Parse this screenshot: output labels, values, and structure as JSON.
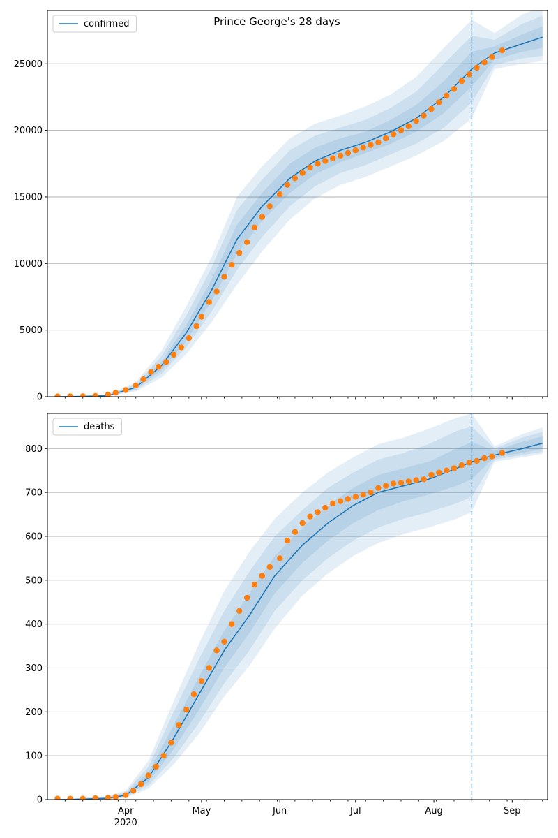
{
  "chart_data": [
    {
      "type": "line",
      "title": "Prince George's 28 days",
      "legend": {
        "label": "confirmed",
        "placement": "top-left"
      },
      "ylim": [
        0,
        29000
      ],
      "yticks": [
        0,
        5000,
        10000,
        15000,
        20000,
        25000
      ],
      "ytick_labels": [
        "0",
        "5000",
        "10000",
        "15000",
        "20000",
        "25000"
      ],
      "grid": true,
      "forecast_start": "2020-08-16",
      "series_color": "#1f77b4",
      "observed_color": "#ff7f0e",
      "band_color": "#1f77b4",
      "model_x": [
        "2020-03-05",
        "2020-03-15",
        "2020-03-25",
        "2020-04-05",
        "2020-04-15",
        "2020-04-25",
        "2020-05-05",
        "2020-05-15",
        "2020-05-25",
        "2020-06-05",
        "2020-06-15",
        "2020-06-25",
        "2020-07-05",
        "2020-07-15",
        "2020-07-25",
        "2020-08-05",
        "2020-08-16",
        "2020-08-25",
        "2020-09-05",
        "2020-09-13"
      ],
      "model_y": [
        0,
        20,
        80,
        700,
        2300,
        4800,
        8000,
        11800,
        14300,
        16400,
        17700,
        18500,
        19100,
        19900,
        20900,
        22500,
        24600,
        25800,
        26500,
        27000
      ],
      "bands": [
        {
          "lo": [
            0,
            15,
            60,
            600,
            2000,
            4200,
            7200,
            10700,
            13200,
            15300,
            16700,
            17600,
            18300,
            19000,
            19900,
            21300,
            23300,
            25300,
            25900,
            26200
          ],
          "hi": [
            0,
            25,
            100,
            800,
            2600,
            5400,
            8800,
            12900,
            15300,
            17500,
            18700,
            19400,
            19900,
            20800,
            21900,
            23700,
            25900,
            26300,
            27200,
            27800
          ]
        },
        {
          "lo": [
            0,
            10,
            40,
            500,
            1700,
            3700,
            6400,
            9500,
            12000,
            14300,
            15800,
            16800,
            17400,
            18200,
            19000,
            20200,
            22100,
            24900,
            25400,
            25600
          ],
          "hi": [
            0,
            30,
            120,
            950,
            3000,
            6100,
            9700,
            14000,
            16300,
            18500,
            19600,
            20200,
            20800,
            21700,
            22900,
            25000,
            27100,
            26800,
            28000,
            28600
          ]
        },
        {
          "lo": [
            0,
            5,
            30,
            400,
            1400,
            3200,
            5600,
            8400,
            10900,
            13300,
            14900,
            15900,
            16500,
            17300,
            18100,
            19200,
            20900,
            24600,
            25000,
            25200
          ],
          "hi": [
            0,
            40,
            150,
            1100,
            3400,
            6800,
            10500,
            15000,
            17300,
            19400,
            20500,
            21100,
            21800,
            22700,
            24000,
            26200,
            28300,
            27300,
            28700,
            29300
          ]
        }
      ],
      "observed_x": [
        "2020-03-05",
        "2020-03-10",
        "2020-03-15",
        "2020-03-20",
        "2020-03-25",
        "2020-03-28",
        "2020-04-01",
        "2020-04-05",
        "2020-04-08",
        "2020-04-11",
        "2020-04-14",
        "2020-04-17",
        "2020-04-20",
        "2020-04-23",
        "2020-04-26",
        "2020-04-29",
        "2020-05-01",
        "2020-05-04",
        "2020-05-07",
        "2020-05-10",
        "2020-05-13",
        "2020-05-16",
        "2020-05-19",
        "2020-05-22",
        "2020-05-25",
        "2020-05-28",
        "2020-06-01",
        "2020-06-04",
        "2020-06-07",
        "2020-06-10",
        "2020-06-13",
        "2020-06-16",
        "2020-06-19",
        "2020-06-22",
        "2020-06-25",
        "2020-06-28",
        "2020-07-01",
        "2020-07-04",
        "2020-07-07",
        "2020-07-10",
        "2020-07-13",
        "2020-07-16",
        "2020-07-19",
        "2020-07-22",
        "2020-07-25",
        "2020-07-28",
        "2020-07-31",
        "2020-08-03",
        "2020-08-06",
        "2020-08-09",
        "2020-08-12",
        "2020-08-15",
        "2020-08-18",
        "2020-08-21",
        "2020-08-24",
        "2020-08-28"
      ],
      "observed_y": [
        20,
        25,
        30,
        50,
        150,
        300,
        500,
        850,
        1300,
        1850,
        2250,
        2600,
        3150,
        3700,
        4400,
        5300,
        6000,
        7100,
        7900,
        9000,
        9900,
        10800,
        11600,
        12700,
        13500,
        14300,
        15200,
        15900,
        16400,
        16800,
        17200,
        17500,
        17700,
        17900,
        18100,
        18300,
        18500,
        18700,
        18900,
        19100,
        19400,
        19700,
        20000,
        20300,
        20700,
        21100,
        21600,
        22100,
        22600,
        23100,
        23700,
        24200,
        24700,
        25100,
        25500,
        26000
      ]
    },
    {
      "type": "line",
      "legend": {
        "label": "deaths",
        "placement": "top-left"
      },
      "ylim": [
        0,
        880
      ],
      "yticks": [
        0,
        100,
        200,
        300,
        400,
        500,
        600,
        700,
        800
      ],
      "ytick_labels": [
        "0",
        "100",
        "200",
        "300",
        "400",
        "500",
        "600",
        "700",
        "800"
      ],
      "grid": true,
      "forecast_start": "2020-08-16",
      "series_color": "#1f77b4",
      "observed_color": "#ff7f0e",
      "band_color": "#1f77b4",
      "model_x": [
        "2020-03-05",
        "2020-03-15",
        "2020-03-25",
        "2020-04-01",
        "2020-04-10",
        "2020-04-20",
        "2020-04-30",
        "2020-05-10",
        "2020-05-20",
        "2020-05-30",
        "2020-06-10",
        "2020-06-20",
        "2020-06-30",
        "2020-07-10",
        "2020-07-20",
        "2020-07-30",
        "2020-08-10",
        "2020-08-16",
        "2020-08-25",
        "2020-09-05",
        "2020-09-13"
      ],
      "model_y": [
        0,
        1,
        3,
        10,
        50,
        140,
        240,
        340,
        420,
        510,
        580,
        630,
        670,
        700,
        715,
        730,
        755,
        770,
        785,
        800,
        812
      ],
      "bands": [
        {
          "lo": [
            0,
            1,
            2,
            8,
            40,
            115,
            205,
            300,
            380,
            470,
            540,
            590,
            630,
            660,
            680,
            695,
            715,
            730,
            780,
            790,
            800
          ],
          "hi": [
            0,
            2,
            4,
            13,
            62,
            170,
            280,
            385,
            470,
            555,
            620,
            670,
            710,
            740,
            755,
            770,
            800,
            815,
            795,
            815,
            828
          ]
        },
        {
          "lo": [
            0,
            0,
            1,
            6,
            32,
            95,
            175,
            265,
            340,
            430,
            500,
            550,
            590,
            620,
            640,
            655,
            675,
            690,
            775,
            785,
            793
          ],
          "hi": [
            0,
            3,
            6,
            17,
            75,
            200,
            320,
            430,
            520,
            600,
            660,
            710,
            745,
            775,
            790,
            810,
            840,
            850,
            800,
            825,
            838
          ]
        },
        {
          "lo": [
            0,
            0,
            1,
            4,
            25,
            80,
            150,
            235,
            305,
            390,
            465,
            515,
            555,
            585,
            605,
            620,
            640,
            655,
            770,
            780,
            788
          ],
          "hi": [
            0,
            4,
            8,
            21,
            88,
            225,
            355,
            475,
            565,
            640,
            700,
            745,
            780,
            810,
            825,
            845,
            870,
            880,
            805,
            833,
            848
          ]
        }
      ],
      "observed_x": [
        "2020-03-05",
        "2020-03-10",
        "2020-03-15",
        "2020-03-20",
        "2020-03-25",
        "2020-03-28",
        "2020-04-01",
        "2020-04-04",
        "2020-04-07",
        "2020-04-10",
        "2020-04-13",
        "2020-04-16",
        "2020-04-19",
        "2020-04-22",
        "2020-04-25",
        "2020-04-28",
        "2020-05-01",
        "2020-05-04",
        "2020-05-07",
        "2020-05-10",
        "2020-05-13",
        "2020-05-16",
        "2020-05-19",
        "2020-05-22",
        "2020-05-25",
        "2020-05-28",
        "2020-06-01",
        "2020-06-04",
        "2020-06-07",
        "2020-06-10",
        "2020-06-13",
        "2020-06-16",
        "2020-06-19",
        "2020-06-22",
        "2020-06-25",
        "2020-06-28",
        "2020-07-01",
        "2020-07-04",
        "2020-07-07",
        "2020-07-10",
        "2020-07-13",
        "2020-07-16",
        "2020-07-19",
        "2020-07-22",
        "2020-07-25",
        "2020-07-28",
        "2020-07-31",
        "2020-08-03",
        "2020-08-06",
        "2020-08-09",
        "2020-08-12",
        "2020-08-15",
        "2020-08-18",
        "2020-08-21",
        "2020-08-24",
        "2020-08-28"
      ],
      "observed_y": [
        2,
        2,
        2,
        3,
        4,
        6,
        10,
        20,
        35,
        55,
        75,
        100,
        130,
        170,
        205,
        240,
        270,
        300,
        340,
        360,
        400,
        430,
        460,
        490,
        510,
        530,
        550,
        590,
        610,
        630,
        645,
        655,
        665,
        675,
        680,
        685,
        690,
        695,
        700,
        710,
        715,
        720,
        722,
        725,
        728,
        730,
        740,
        745,
        750,
        755,
        762,
        768,
        772,
        778,
        782,
        790
      ]
    }
  ],
  "x_axis": {
    "range": [
      "2020-03-01",
      "2020-09-15"
    ],
    "major_ticks": [
      {
        "date": "2020-04-01",
        "label": "Apr"
      },
      {
        "date": "2020-05-01",
        "label": "May"
      },
      {
        "date": "2020-06-01",
        "label": "Jun"
      },
      {
        "date": "2020-07-01",
        "label": "Jul"
      },
      {
        "date": "2020-08-01",
        "label": "Aug"
      },
      {
        "date": "2020-09-01",
        "label": "Sep"
      }
    ],
    "year_label": "2020"
  }
}
